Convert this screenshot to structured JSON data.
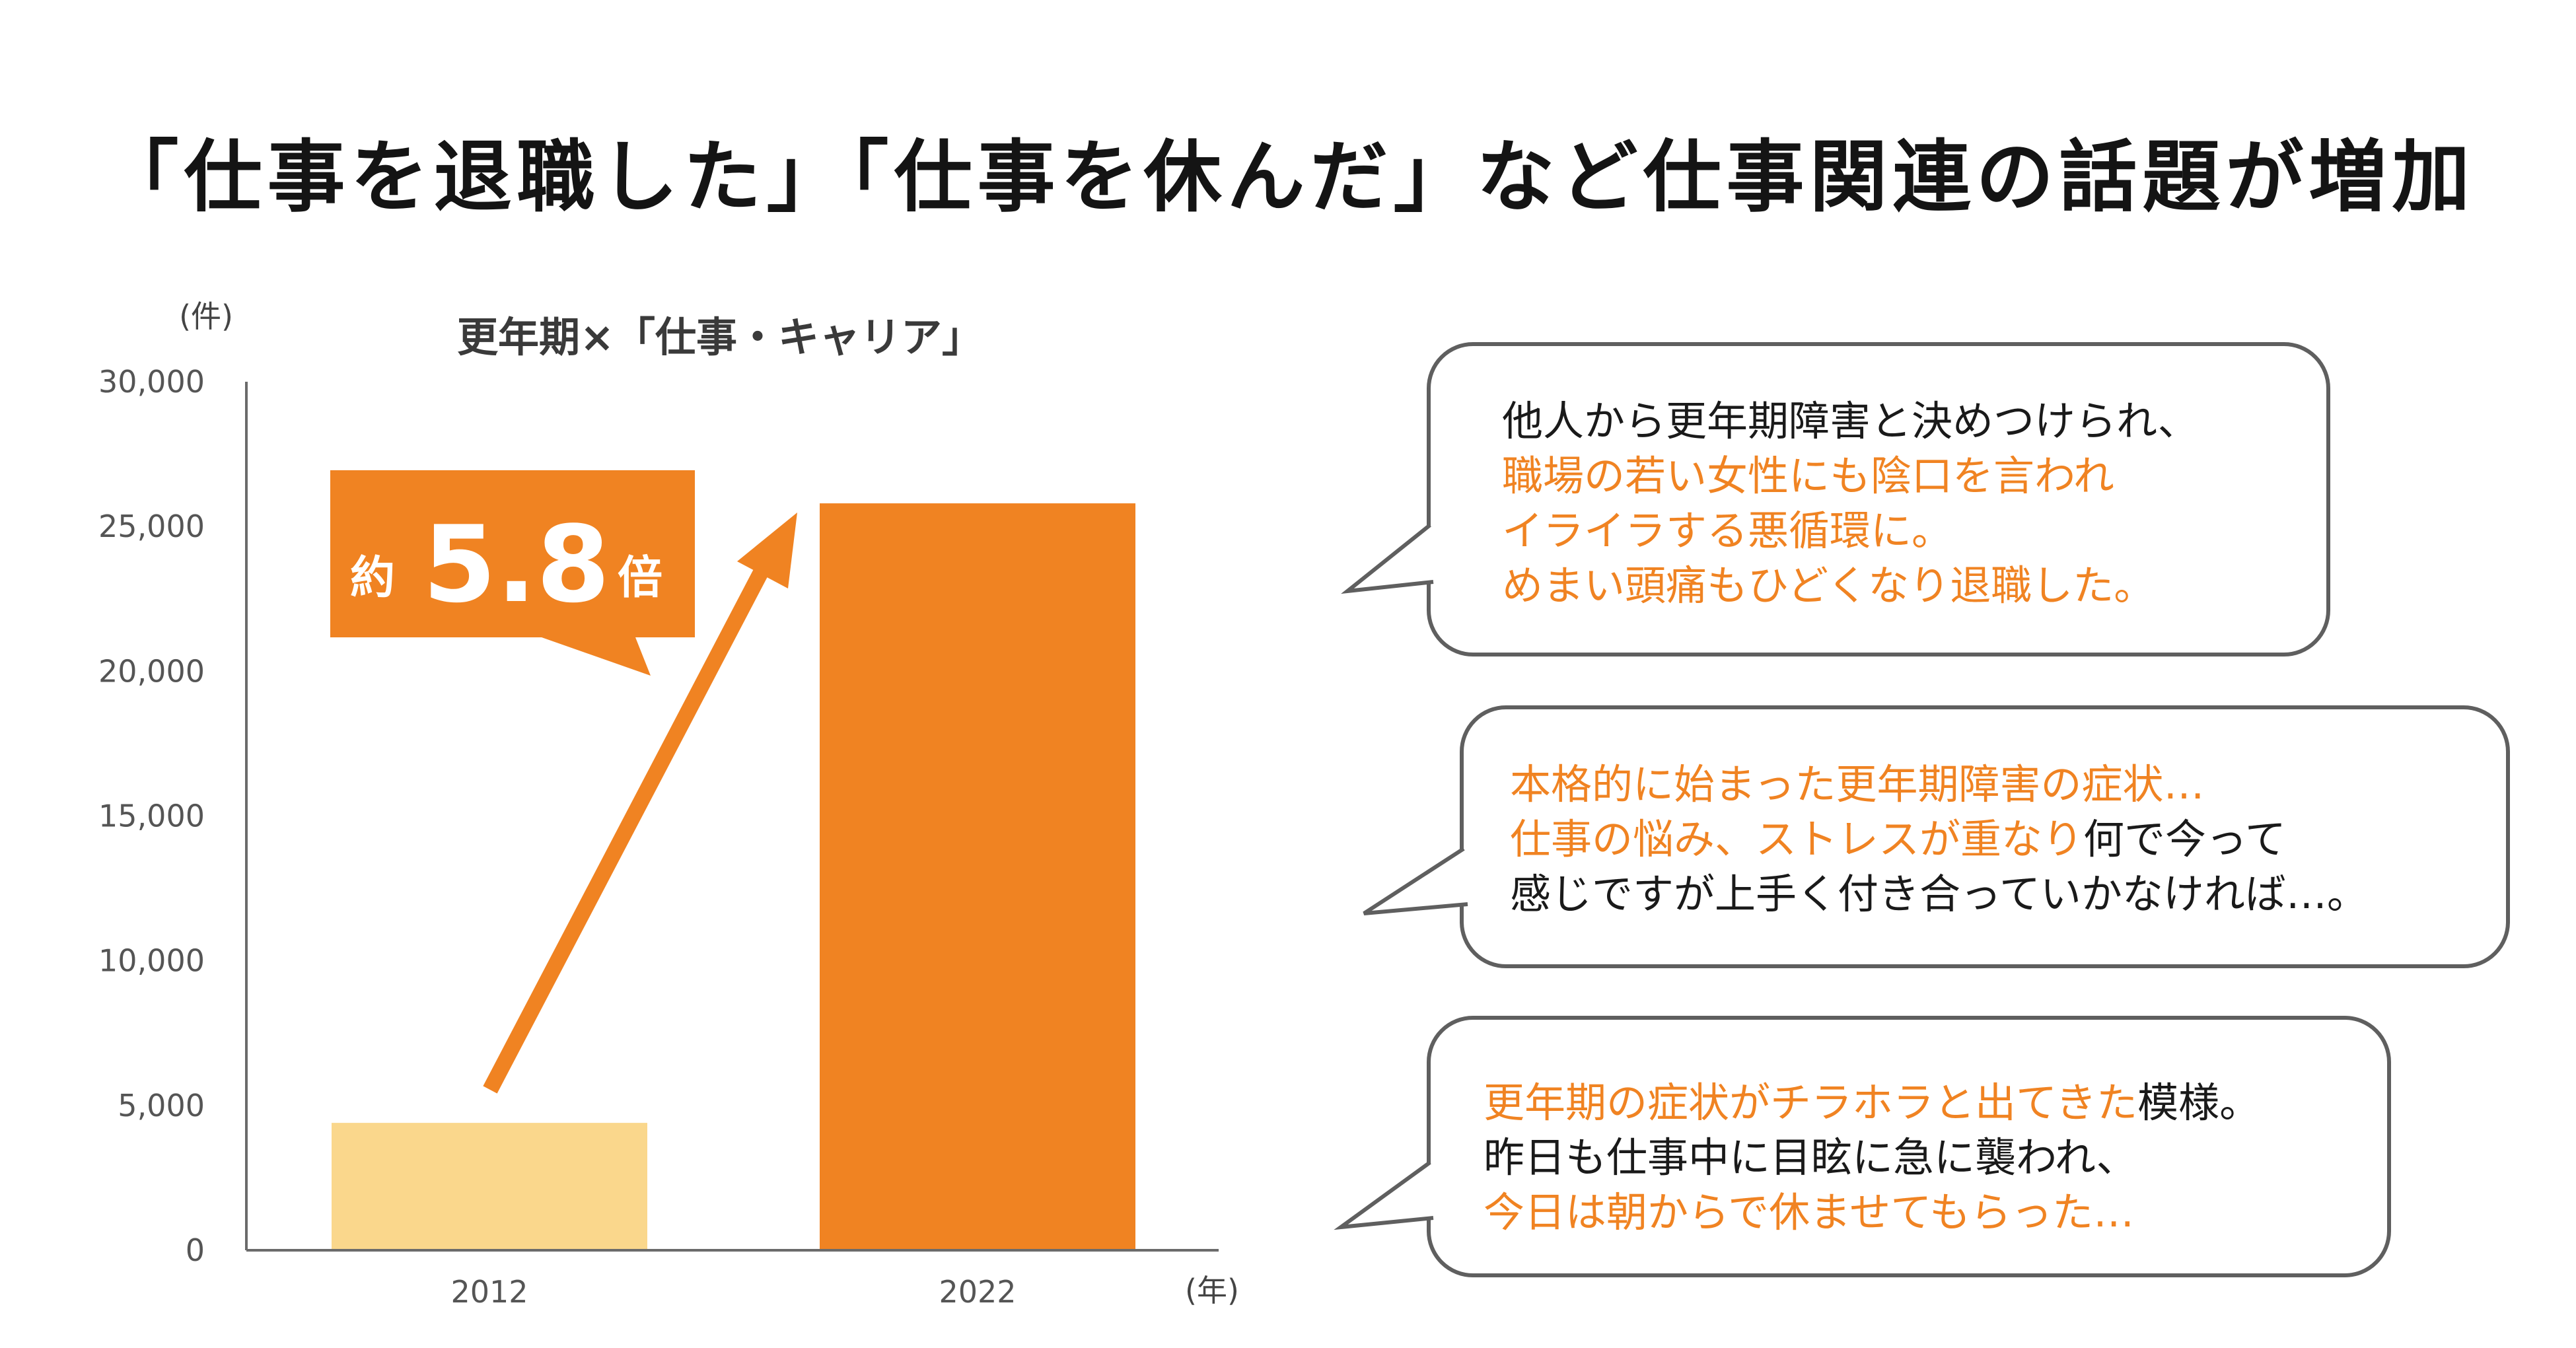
{
  "headline": "「仕事を退職した」「仕事を休んだ」など仕事関連の話題が増加",
  "chart_data": {
    "type": "bar",
    "title": "更年期×「仕事・キャリア」",
    "ylabel": "(件)",
    "xlabel": "(年)",
    "categories": [
      "2012",
      "2022"
    ],
    "values": [
      4400,
      25800
    ],
    "ylim": [
      0,
      30000
    ],
    "yticks": [
      "0",
      "5,000",
      "10,000",
      "15,000",
      "20,000",
      "25,000",
      "30,000"
    ],
    "bar_colors": [
      "#fad78c",
      "#f08322"
    ],
    "callout": {
      "prefix": "約",
      "value": "5.8",
      "suffix": "倍"
    },
    "accent_color": "#f08322"
  },
  "bubbles": [
    {
      "lines": [
        [
          {
            "text": "他人から更年期障害と決めつけられ、",
            "color": "black"
          }
        ],
        [
          {
            "text": "職場の若い女性にも陰口を言われ",
            "color": "orange"
          }
        ],
        [
          {
            "text": "イライラする悪循環に。",
            "color": "orange"
          }
        ],
        [
          {
            "text": "めまい頭痛もひどくなり退職した。",
            "color": "orange"
          }
        ]
      ]
    },
    {
      "lines": [
        [
          {
            "text": "本格的に始まった更年期障害の症状…",
            "color": "orange"
          }
        ],
        [
          {
            "text": "仕事の悩み、ストレスが重なり",
            "color": "orange"
          },
          {
            "text": "何で今って",
            "color": "black"
          }
        ],
        [
          {
            "text": "感じですが上手く付き合っていかなければ…。",
            "color": "black"
          }
        ]
      ]
    },
    {
      "lines": [
        [
          {
            "text": "更年期の症状がチラホラと出てきた",
            "color": "orange"
          },
          {
            "text": "模様。",
            "color": "black"
          }
        ],
        [
          {
            "text": "昨日も仕事中に目眩に急に襲われ、",
            "color": "black"
          }
        ],
        [
          {
            "text": "今日は朝からで休ませてもらった…",
            "color": "orange"
          }
        ]
      ]
    }
  ]
}
